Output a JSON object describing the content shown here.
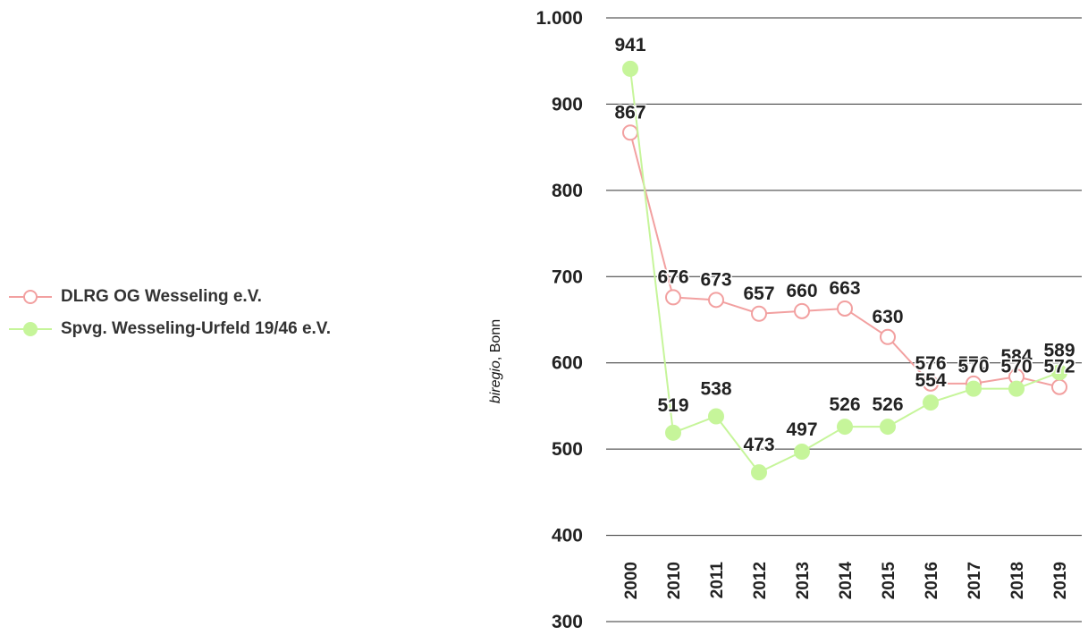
{
  "chart_data": {
    "type": "line",
    "categories": [
      "2000",
      "2010",
      "2011",
      "2012",
      "2013",
      "2014",
      "2015",
      "2016",
      "2017",
      "2018",
      "2019"
    ],
    "ylim": [
      300,
      1000
    ],
    "yticks": [
      300,
      400,
      500,
      600,
      700,
      800,
      900,
      1000
    ],
    "ytick_labels": [
      "300",
      "400",
      "500",
      "600",
      "700",
      "800",
      "900",
      "1.000"
    ],
    "ylabel_italic": "biregio",
    "ylabel_rest": ", Bonn",
    "grid": true,
    "legend_position": "left",
    "series": [
      {
        "name": "DLRG OG Wesseling e.V.",
        "values": [
          867,
          676,
          673,
          657,
          660,
          663,
          630,
          576,
          576,
          584,
          572
        ],
        "color": "#f2a0a0",
        "marker": "open-circle"
      },
      {
        "name": "Spvg. Wesseling-Urfeld 19/46 e.V.",
        "values": [
          941,
          519,
          538,
          473,
          497,
          526,
          526,
          554,
          570,
          570,
          589
        ],
        "color": "#c6f59a",
        "marker": "filled-circle"
      }
    ]
  },
  "legend": {
    "items": [
      "DLRG OG Wesseling e.V.",
      "Spvg. Wesseling-Urfeld 19/46 e.V."
    ]
  }
}
